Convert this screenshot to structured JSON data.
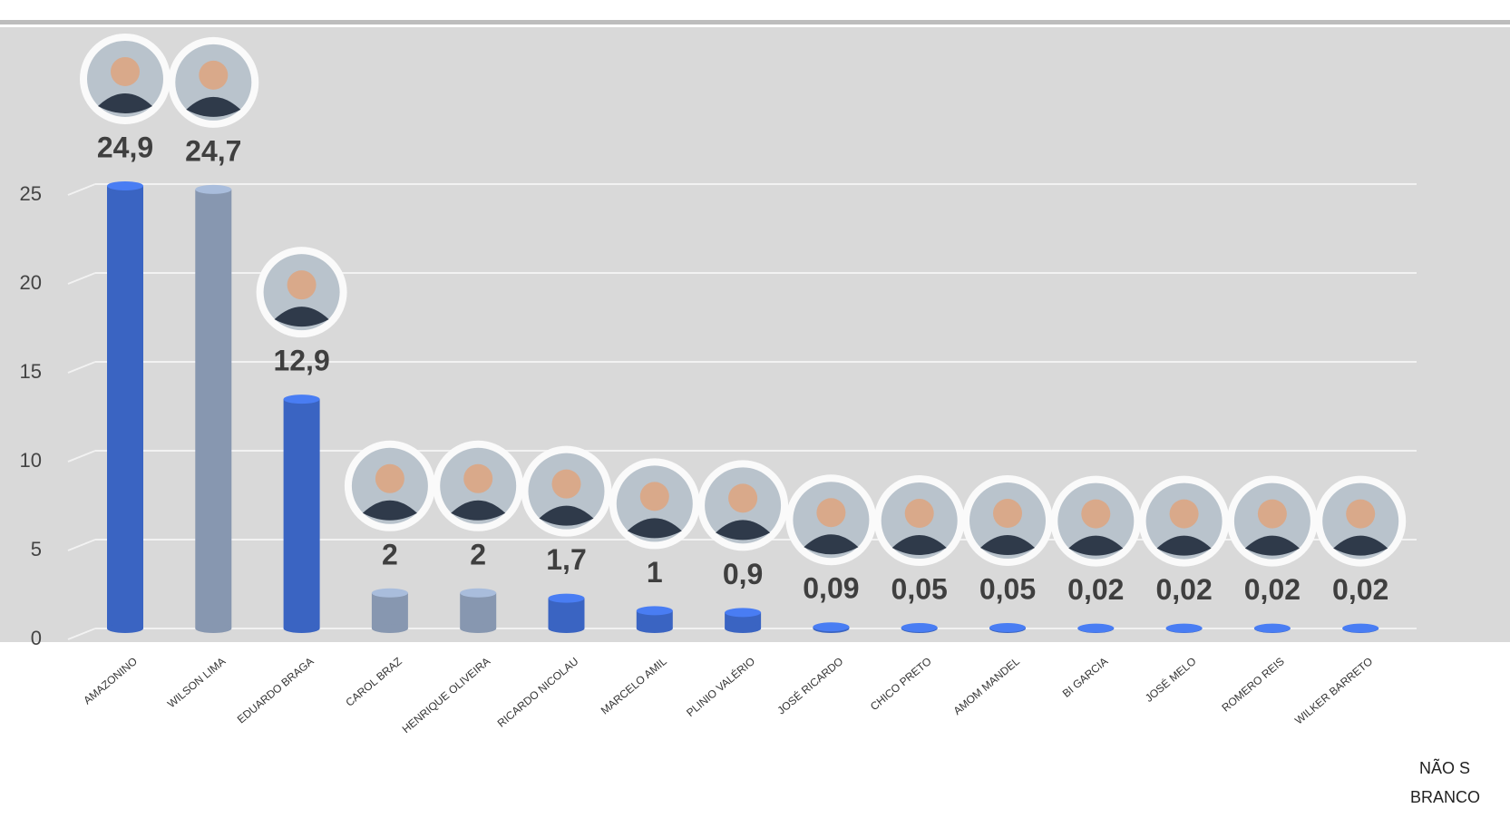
{
  "chart_data": {
    "type": "bar",
    "categories": [
      "AMAZONINO",
      "WILSON LIMA",
      "EDUARDO BRAGA",
      "CAROL BRAZ",
      "HENRIQUE OLIVEIRA",
      "RICARDO NICOLAU",
      "MARCELO AMIL",
      "PLINIO VALÉRIO",
      "JOSÉ RICARDO",
      "CHICO PRETO",
      "AMOM MANDEL",
      "BI GARCIA",
      "JOSÉ MELO",
      "ROMERO REIS",
      "WILKER BARRETO"
    ],
    "values": [
      24.9,
      24.7,
      12.9,
      2,
      2,
      1.7,
      1,
      0.9,
      0.09,
      0.05,
      0.05,
      0.02,
      0.02,
      0.02,
      0.02
    ],
    "value_labels": [
      "24,9",
      "24,7",
      "12,9",
      "2",
      "2",
      "1,7",
      "1",
      "0,9",
      "0,09",
      "0,05",
      "0,05",
      "0,02",
      "0,02",
      "0,02",
      "0,02"
    ],
    "colors": [
      "#3a64c2",
      "#8797b0",
      "#3a64c2",
      "#8797b0",
      "#8797b0",
      "#3a64c2",
      "#3a64c2",
      "#3a64c2",
      "#3a64c2",
      "#3a64c2",
      "#3a64c2",
      "#3a64c2",
      "#3a64c2",
      "#3a64c2",
      "#3a64c2"
    ],
    "ylim": [
      0,
      25
    ],
    "yticks": [
      0,
      5,
      10,
      15,
      20,
      25
    ],
    "grid": true,
    "annotations": [
      "NÃO S",
      "BRANCO"
    ]
  }
}
